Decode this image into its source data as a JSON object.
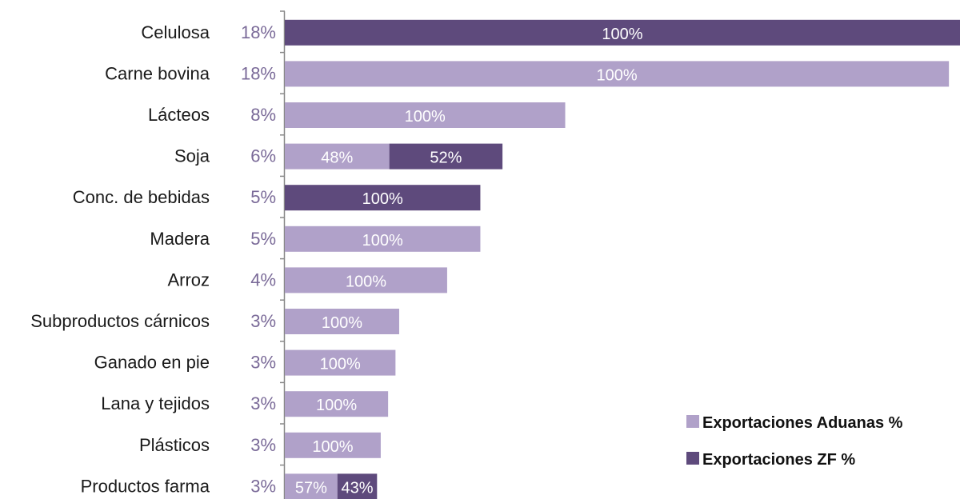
{
  "chart_data": {
    "type": "bar",
    "orientation": "horizontal",
    "stacked": true,
    "categories": [
      "Celulosa",
      "Carne bovina",
      "Lácteos",
      "Soja",
      "Conc. de bebidas",
      "Madera",
      "Arroz",
      "Subproductos cárnicos",
      "Ganado en pie",
      "Lana y tejidos",
      "Plásticos",
      "Productos farma"
    ],
    "shares": [
      "18%",
      "18%",
      "8%",
      "6%",
      "5%",
      "5%",
      "4%",
      "3%",
      "3%",
      "3%",
      "3%",
      "3%"
    ],
    "share_values": [
      18.3,
      18.0,
      7.6,
      5.9,
      5.3,
      5.3,
      4.4,
      3.1,
      3.0,
      2.8,
      2.6,
      2.5
    ],
    "series": [
      {
        "name": "Exportaciones Aduanas %",
        "color": "#b0a1c9",
        "values": [
          0,
          100,
          100,
          48,
          0,
          100,
          100,
          100,
          100,
          100,
          100,
          57
        ],
        "labels": [
          "",
          "100%",
          "100%",
          "48%",
          "",
          "100%",
          "100%",
          "100%",
          "100%",
          "100%",
          "100%",
          "57%"
        ]
      },
      {
        "name": "Exportaciones ZF %",
        "color": "#5e4a7c",
        "values": [
          100,
          0,
          0,
          52,
          100,
          0,
          0,
          0,
          0,
          0,
          0,
          43
        ],
        "labels": [
          "100%",
          "",
          "",
          "52%",
          "100%",
          "",
          "",
          "",
          "",
          "",
          "",
          "43%"
        ]
      }
    ],
    "legend_position": "bottom-right",
    "grid": false,
    "share_color": "#7a6a98",
    "axis_color": "#888888"
  }
}
